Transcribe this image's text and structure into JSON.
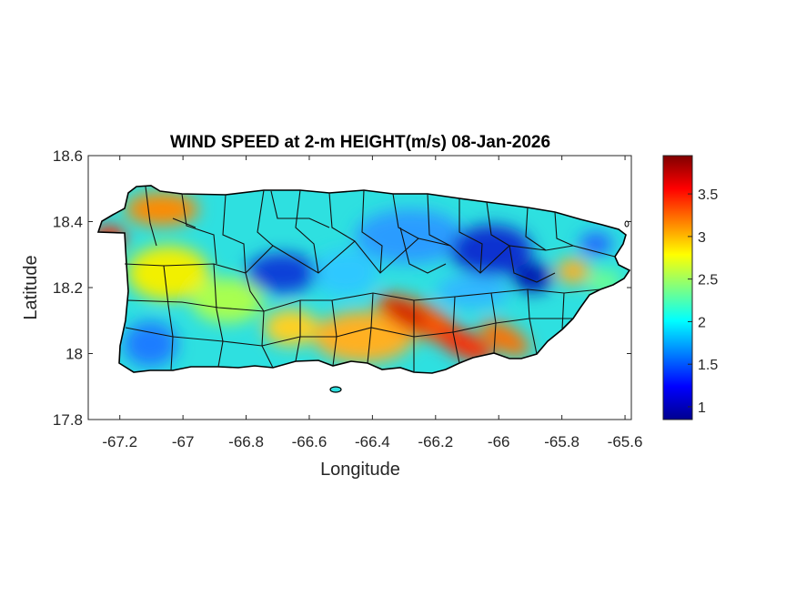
{
  "chart_data": {
    "type": "heatmap",
    "title": "WIND SPEED at 2-m HEIGHT(m/s) 08-Jan-2026",
    "xlabel": "Longitude",
    "ylabel": "Latitude",
    "xlim": [
      -67.3,
      -65.58
    ],
    "ylim": [
      17.8,
      18.6
    ],
    "x_ticks": [
      -67.2,
      -67,
      -66.8,
      -66.6,
      -66.4,
      -66.2,
      -66,
      -65.8,
      -65.6
    ],
    "x_tick_labels": [
      "-67.2",
      "-67",
      "-66.8",
      "-66.6",
      "-66.4",
      "-66.2",
      "-66",
      "-65.8",
      "-65.6"
    ],
    "y_ticks": [
      17.8,
      18,
      18.2,
      18.4,
      18.6
    ],
    "y_tick_labels": [
      "17.8",
      "18",
      "18.2",
      "18.4",
      "18.6"
    ],
    "colorbar": {
      "colormap": "jet",
      "range": [
        0.85,
        3.95
      ],
      "ticks": [
        1,
        1.5,
        2,
        2.5,
        3,
        3.5
      ],
      "tick_labels": [
        "1",
        "1.5",
        "2",
        "2.5",
        "3",
        "3.5"
      ]
    },
    "grid": false,
    "legend": "colorbar-right",
    "wind_features": [
      {
        "lon": -66.3,
        "lat": 18.12,
        "value": 3.8
      },
      {
        "lon": -66.15,
        "lat": 18.05,
        "value": 3.7
      },
      {
        "lon": -65.98,
        "lat": 18.03,
        "value": 3.5
      },
      {
        "lon": -67.25,
        "lat": 18.37,
        "value": 3.6
      },
      {
        "lon": -67.08,
        "lat": 18.45,
        "value": 3.3
      },
      {
        "lon": -66.72,
        "lat": 18.22,
        "value": 1.1
      },
      {
        "lon": -65.95,
        "lat": 18.22,
        "value": 1.0
      },
      {
        "lon": -66.12,
        "lat": 18.3,
        "value": 1.3
      },
      {
        "lon": -65.68,
        "lat": 18.3,
        "value": 1.6
      },
      {
        "lon": -65.82,
        "lat": 18.24,
        "value": 3.0
      },
      {
        "lon": -66.55,
        "lat": 18.02,
        "value": 2.8
      },
      {
        "lon": -66.45,
        "lat": 17.97,
        "value": 2.9
      },
      {
        "lon": -67.05,
        "lat": 18.28,
        "value": 2.6
      },
      {
        "lon": -66.9,
        "lat": 18.08,
        "value": 2.3
      },
      {
        "lon": -67.18,
        "lat": 18.0,
        "value": 1.6
      },
      {
        "lon": -66.52,
        "lat": 18.22,
        "value": 1.7
      },
      {
        "lon": -66.9,
        "lat": 18.4,
        "value": 2.0
      },
      {
        "lon": -66.35,
        "lat": 18.36,
        "value": 1.5
      }
    ]
  }
}
